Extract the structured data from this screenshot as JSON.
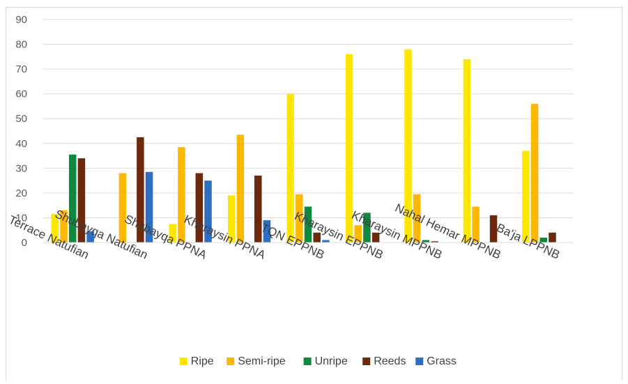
{
  "chart_data": {
    "type": "bar",
    "title": "",
    "xlabel": "",
    "ylabel": "",
    "ylim": [
      0,
      90
    ],
    "yticks": [
      0,
      10,
      20,
      30,
      40,
      50,
      60,
      70,
      80,
      90
    ],
    "grid": true,
    "legend_position": "bottom",
    "categories": [
      "Hayonim Terrace Natufian",
      "Shubayqa Natufian",
      "Shubayqa PPNA",
      "Kharaysin PPNA",
      "TQN EPPNB",
      "Kharaysin EPPNB",
      "Kharaysin MPPNB",
      "Nahal Hemar MPPNB",
      "Ba'ja LPPNB"
    ],
    "series": [
      {
        "name": "Ripe",
        "color": "#FFE600",
        "values": [
          11.5,
          0,
          7.5,
          19,
          60,
          76,
          78,
          74,
          37
        ]
      },
      {
        "name": "Semi-ripe",
        "color": "#FFB800",
        "values": [
          13,
          28,
          38.5,
          43.5,
          19.5,
          7,
          19.5,
          14.5,
          56
        ]
      },
      {
        "name": "Unripe",
        "color": "#0E8A3E",
        "values": [
          35.5,
          0,
          0,
          0,
          14.5,
          12,
          1,
          0,
          2
        ]
      },
      {
        "name": "Reeds",
        "color": "#6B2A0B",
        "values": [
          34,
          42.5,
          28,
          27,
          4,
          4,
          0.5,
          11,
          4
        ]
      },
      {
        "name": "Grass",
        "color": "#2E6FC1",
        "values": [
          4.5,
          28.5,
          25,
          9,
          1,
          0,
          0,
          0,
          0
        ]
      }
    ]
  }
}
